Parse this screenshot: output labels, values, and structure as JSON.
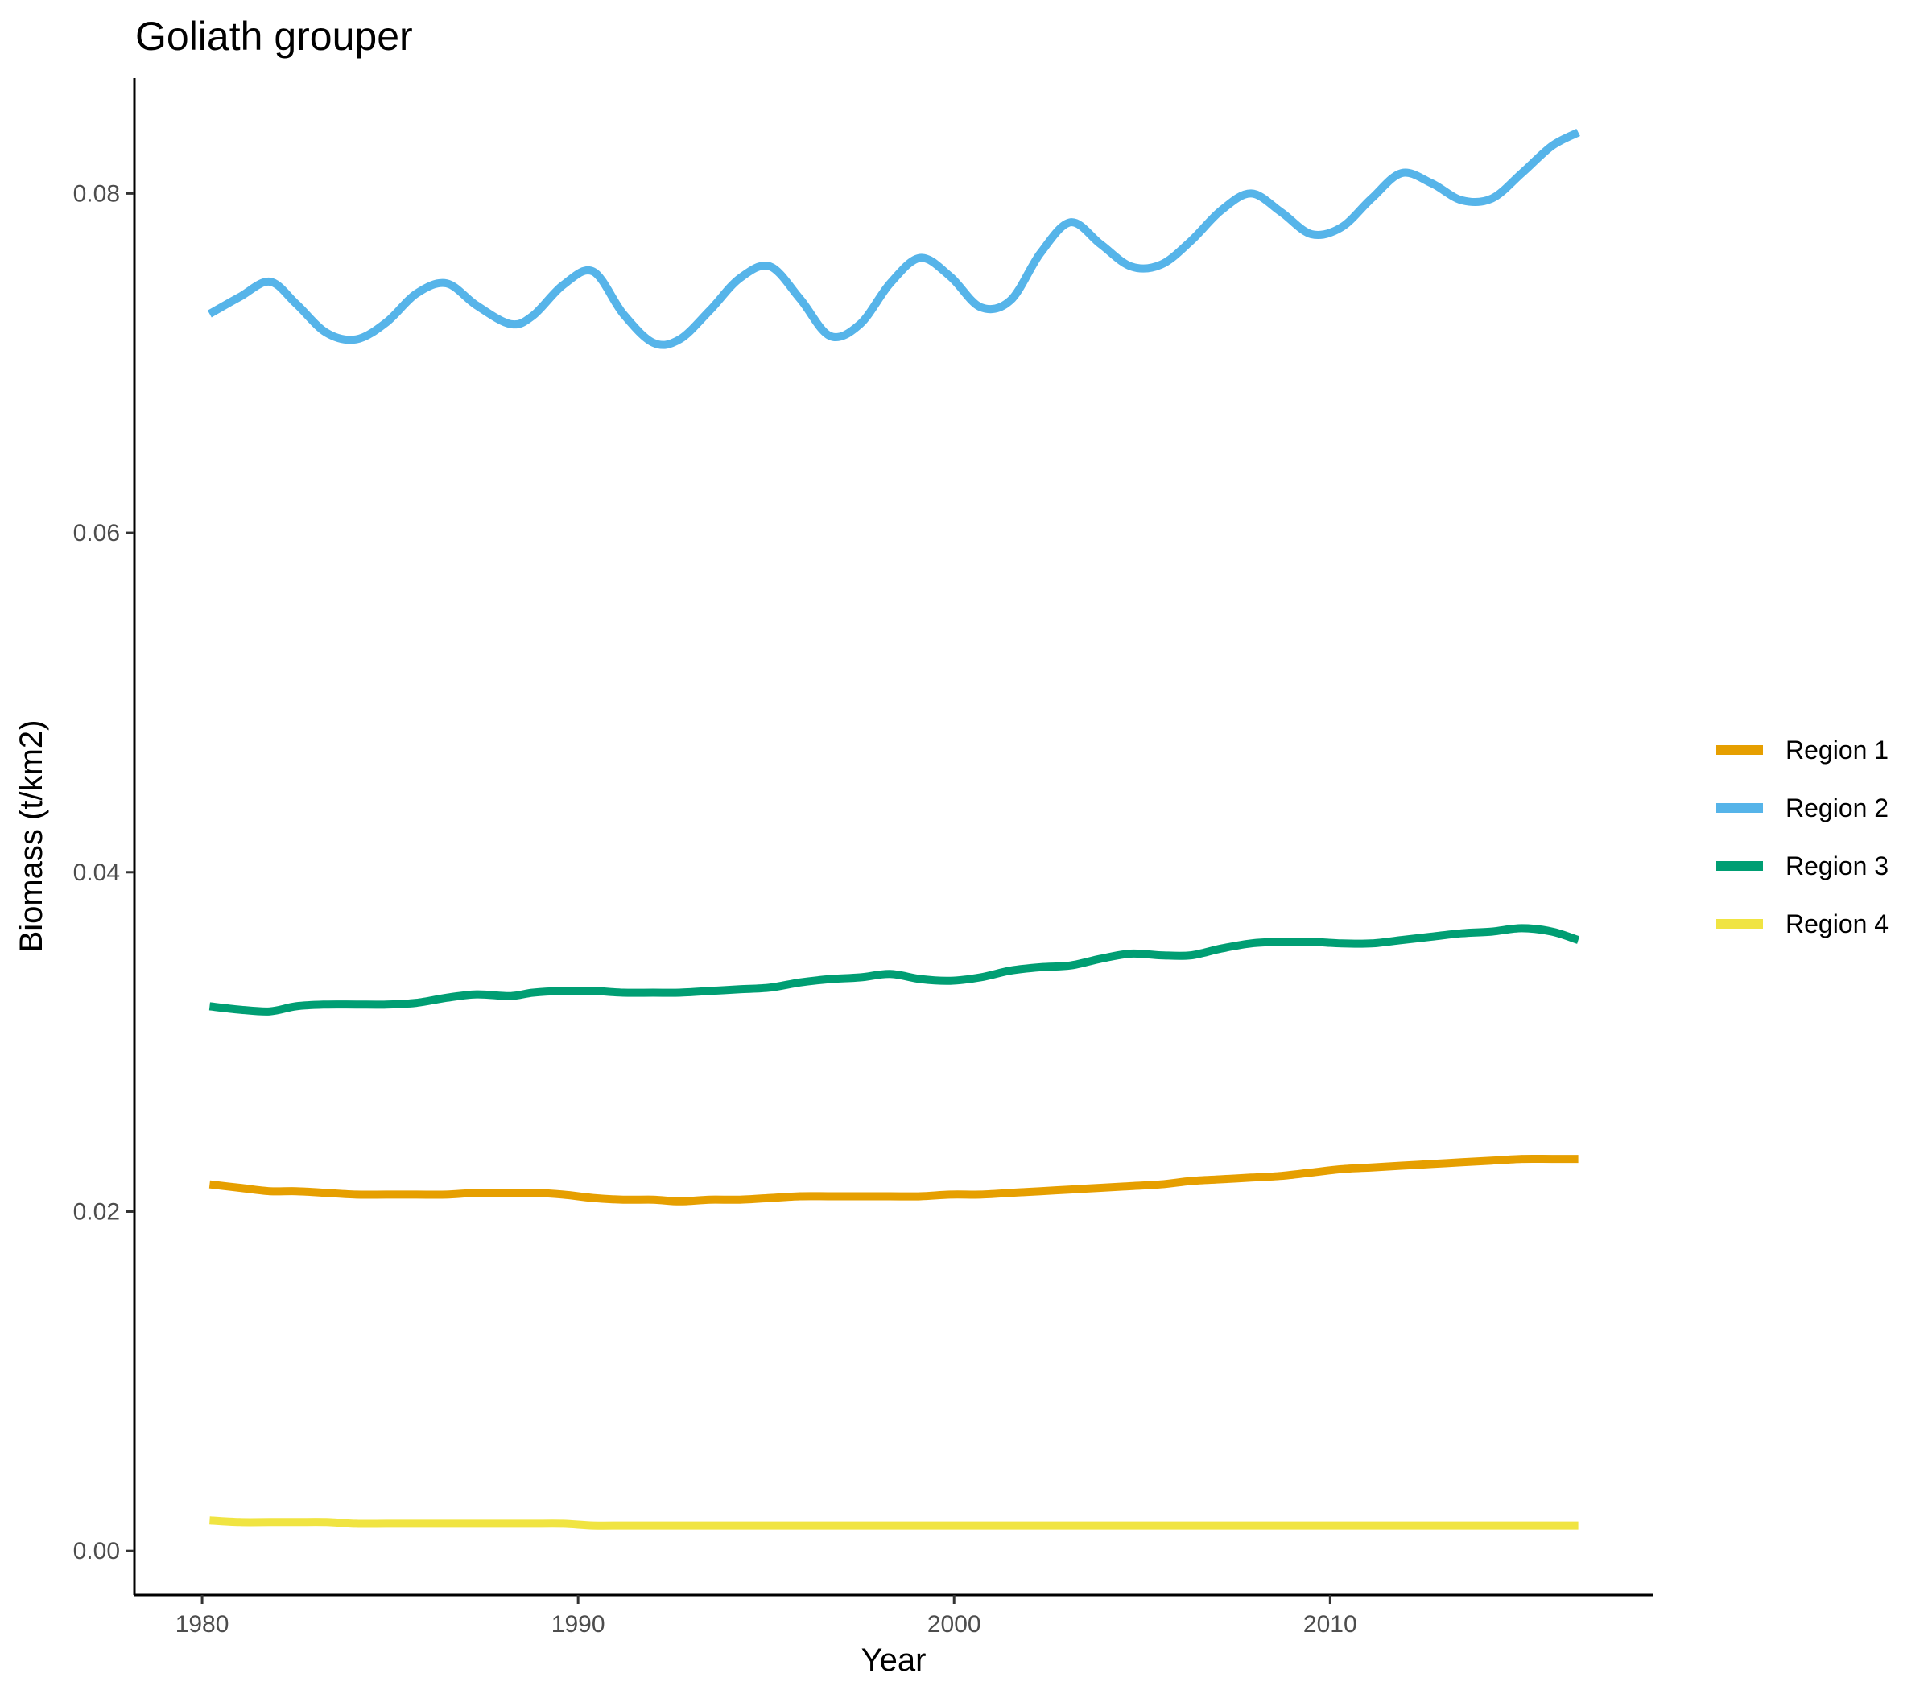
{
  "chart_data": {
    "type": "line",
    "title": "Goliath grouper",
    "xlabel": "Year",
    "ylabel": "Biomass (t/km2)",
    "xlim": [
      1978.2,
      2018.6
    ],
    "ylim": [
      -0.0026,
      0.0868
    ],
    "x_ticks": [
      1980,
      1990,
      2000,
      2010
    ],
    "x_tick_labels": [
      "1980",
      "1990",
      "2000",
      "2010"
    ],
    "y_ticks": [
      0.0,
      0.02,
      0.04,
      0.06,
      0.08
    ],
    "y_tick_labels": [
      "0.00",
      "0.02",
      "0.04",
      "0.06",
      "0.08"
    ],
    "grid": false,
    "legend_position": "right",
    "x": [
      1980.2,
      1981.0,
      1981.8,
      1982.5,
      1983.3,
      1984.1,
      1984.9,
      1985.7,
      1986.5,
      1987.3,
      1988.2,
      1988.8,
      1989.6,
      1990.4,
      1991.2,
      1992.0,
      1992.7,
      1993.5,
      1994.3,
      1995.1,
      1995.9,
      1996.7,
      1997.5,
      1998.3,
      1999.1,
      1999.9,
      2000.7,
      2001.5,
      2002.3,
      2003.1,
      2003.9,
      2004.7,
      2005.5,
      2006.3,
      2007.1,
      2007.9,
      2008.7,
      2009.5,
      2010.3,
      2011.1,
      2011.9,
      2012.7,
      2013.5,
      2014.3,
      2015.1,
      2015.9,
      2016.6
    ],
    "series": [
      {
        "name": "Region 1",
        "color": "#E69F00",
        "values": [
          0.0216,
          0.0214,
          0.0212,
          0.0212,
          0.0211,
          0.021,
          0.021,
          0.021,
          0.021,
          0.0211,
          0.0211,
          0.0211,
          0.021,
          0.0208,
          0.0207,
          0.0207,
          0.0206,
          0.0207,
          0.0207,
          0.0208,
          0.0209,
          0.0209,
          0.0209,
          0.0209,
          0.0209,
          0.021,
          0.021,
          0.0211,
          0.0212,
          0.0213,
          0.0214,
          0.0215,
          0.0216,
          0.0218,
          0.0219,
          0.022,
          0.0221,
          0.0223,
          0.0225,
          0.0226,
          0.0227,
          0.0228,
          0.0229,
          0.023,
          0.0231,
          0.0231,
          0.0231
        ]
      },
      {
        "name": "Region 2",
        "color": "#56B4E9",
        "values": [
          0.0729,
          0.0739,
          0.0748,
          0.0735,
          0.0718,
          0.0714,
          0.0724,
          0.0741,
          0.0747,
          0.0734,
          0.0723,
          0.0728,
          0.0746,
          0.0754,
          0.0729,
          0.0712,
          0.0714,
          0.0731,
          0.075,
          0.0757,
          0.0738,
          0.0716,
          0.0723,
          0.0747,
          0.0762,
          0.0751,
          0.0733,
          0.0737,
          0.0765,
          0.0783,
          0.077,
          0.0757,
          0.0758,
          0.0772,
          0.079,
          0.08,
          0.0789,
          0.0776,
          0.078,
          0.0797,
          0.0812,
          0.0806,
          0.0796,
          0.0797,
          0.0812,
          0.0828,
          0.0836
        ]
      },
      {
        "name": "Region 3",
        "color": "#009E73",
        "values": [
          0.0321,
          0.0319,
          0.0318,
          0.0321,
          0.0322,
          0.0322,
          0.0322,
          0.0323,
          0.0326,
          0.0328,
          0.0327,
          0.0329,
          0.033,
          0.033,
          0.0329,
          0.0329,
          0.0329,
          0.033,
          0.0331,
          0.0332,
          0.0335,
          0.0337,
          0.0338,
          0.034,
          0.0337,
          0.0336,
          0.0338,
          0.0342,
          0.0344,
          0.0345,
          0.0349,
          0.0352,
          0.0351,
          0.0351,
          0.0355,
          0.0358,
          0.0359,
          0.0359,
          0.0358,
          0.0358,
          0.036,
          0.0362,
          0.0364,
          0.0365,
          0.0367,
          0.0365,
          0.036
        ]
      },
      {
        "name": "Region 4",
        "color": "#F0E442",
        "values": [
          0.0018,
          0.0017,
          0.0017,
          0.0017,
          0.0017,
          0.0016,
          0.0016,
          0.0016,
          0.0016,
          0.0016,
          0.0016,
          0.0016,
          0.0016,
          0.0015,
          0.0015,
          0.0015,
          0.0015,
          0.0015,
          0.0015,
          0.0015,
          0.0015,
          0.0015,
          0.0015,
          0.0015,
          0.0015,
          0.0015,
          0.0015,
          0.0015,
          0.0015,
          0.0015,
          0.0015,
          0.0015,
          0.0015,
          0.0015,
          0.0015,
          0.0015,
          0.0015,
          0.0015,
          0.0015,
          0.0015,
          0.0015,
          0.0015,
          0.0015,
          0.0015,
          0.0015,
          0.0015,
          0.0015
        ]
      }
    ]
  }
}
